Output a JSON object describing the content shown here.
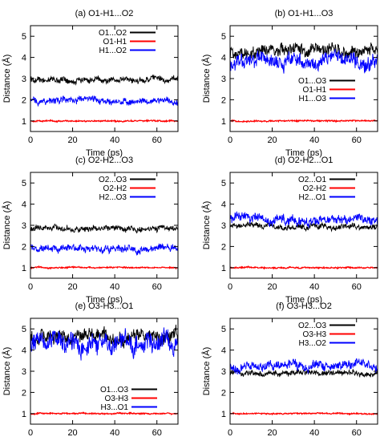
{
  "chart_data": [
    {
      "type": "line",
      "title": "(a) O1-H1...O2",
      "xlabel": "Time (ps)",
      "ylabel": "Distance (Å)",
      "xlim": [
        0,
        70
      ],
      "ylim": [
        0.5,
        5.5
      ],
      "xticks": [
        0,
        20,
        40,
        60
      ],
      "yticks": [
        1,
        2,
        3,
        4,
        5
      ],
      "legend_position": "top-center",
      "series": [
        {
          "name": "O1...O2",
          "color": "#000000",
          "mean": 2.95,
          "noise": 0.14
        },
        {
          "name": "O1-H1",
          "color": "#ff0000",
          "mean": 1.0,
          "noise": 0.03
        },
        {
          "name": "H1...O2",
          "color": "#0000ff",
          "mean": 1.95,
          "noise": 0.16
        }
      ]
    },
    {
      "type": "line",
      "title": "(b) O1-H1...O3",
      "xlabel": "Time (ps)",
      "ylabel": "Distance (Å)",
      "xlim": [
        0,
        70
      ],
      "ylim": [
        0.5,
        5.5
      ],
      "xticks": [
        0,
        20,
        40,
        60
      ],
      "yticks": [
        1,
        2,
        3,
        4,
        5
      ],
      "legend_position": "center",
      "series": [
        {
          "name": "O1...O3",
          "color": "#000000",
          "mean": 4.3,
          "noise": 0.3
        },
        {
          "name": "O1-H1",
          "color": "#ff0000",
          "mean": 1.0,
          "noise": 0.03
        },
        {
          "name": "H1...O3",
          "color": "#0000ff",
          "mean": 3.8,
          "noise": 0.35
        }
      ]
    },
    {
      "type": "line",
      "title": "(c) O2-H2...O3",
      "xlabel": "Time (ps)",
      "ylabel": "Distance (Å)",
      "xlim": [
        0,
        70
      ],
      "ylim": [
        0.5,
        5.5
      ],
      "xticks": [
        0,
        20,
        40,
        60
      ],
      "yticks": [
        1,
        2,
        3,
        4,
        5
      ],
      "legend_position": "top-center",
      "series": [
        {
          "name": "O2...O3",
          "color": "#000000",
          "mean": 2.85,
          "noise": 0.13
        },
        {
          "name": "O2-H2",
          "color": "#ff0000",
          "mean": 1.0,
          "noise": 0.03
        },
        {
          "name": "H2...O3",
          "color": "#0000ff",
          "mean": 1.95,
          "noise": 0.17
        }
      ]
    },
    {
      "type": "line",
      "title": "(d) O2-H2...O1",
      "xlabel": "Time (ps)",
      "ylabel": "Distance (Å)",
      "xlim": [
        0,
        70
      ],
      "ylim": [
        0.5,
        5.5
      ],
      "xticks": [
        0,
        20,
        40,
        60
      ],
      "yticks": [
        1,
        2,
        3,
        4,
        5
      ],
      "legend_position": "top-center",
      "series": [
        {
          "name": "O2...O1",
          "color": "#000000",
          "mean": 2.95,
          "noise": 0.13
        },
        {
          "name": "O2-H2",
          "color": "#ff0000",
          "mean": 1.0,
          "noise": 0.03
        },
        {
          "name": "H2...O1",
          "color": "#0000ff",
          "mean": 3.3,
          "noise": 0.22
        }
      ]
    },
    {
      "type": "line",
      "title": "(e) O3-H3...O1",
      "xlabel": "Time (ps)",
      "ylabel": "Distance (Å)",
      "xlim": [
        0,
        70
      ],
      "ylim": [
        0.5,
        5.5
      ],
      "xticks": [
        0,
        20,
        40,
        60
      ],
      "yticks": [
        1,
        2,
        3,
        4,
        5
      ],
      "legend_position": "bottom-right",
      "series": [
        {
          "name": "O1...O3",
          "color": "#000000",
          "mean": 4.6,
          "noise": 0.35
        },
        {
          "name": "O3-H3",
          "color": "#ff0000",
          "mean": 1.0,
          "noise": 0.03
        },
        {
          "name": "H3...O1",
          "color": "#0000ff",
          "mean": 4.3,
          "noise": 0.45
        }
      ]
    },
    {
      "type": "line",
      "title": "(f) O3-H3...O2",
      "xlabel": "Time (ps)",
      "ylabel": "Distance (Å)",
      "xlim": [
        0,
        70
      ],
      "ylim": [
        0.5,
        5.5
      ],
      "xticks": [
        0,
        20,
        40,
        60
      ],
      "yticks": [
        1,
        2,
        3,
        4,
        5
      ],
      "legend_position": "top-center",
      "series": [
        {
          "name": "O2...O3",
          "color": "#000000",
          "mean": 2.9,
          "noise": 0.13
        },
        {
          "name": "O3-H3",
          "color": "#ff0000",
          "mean": 1.0,
          "noise": 0.03
        },
        {
          "name": "H3...O2",
          "color": "#0000ff",
          "mean": 3.25,
          "noise": 0.22
        }
      ]
    }
  ]
}
